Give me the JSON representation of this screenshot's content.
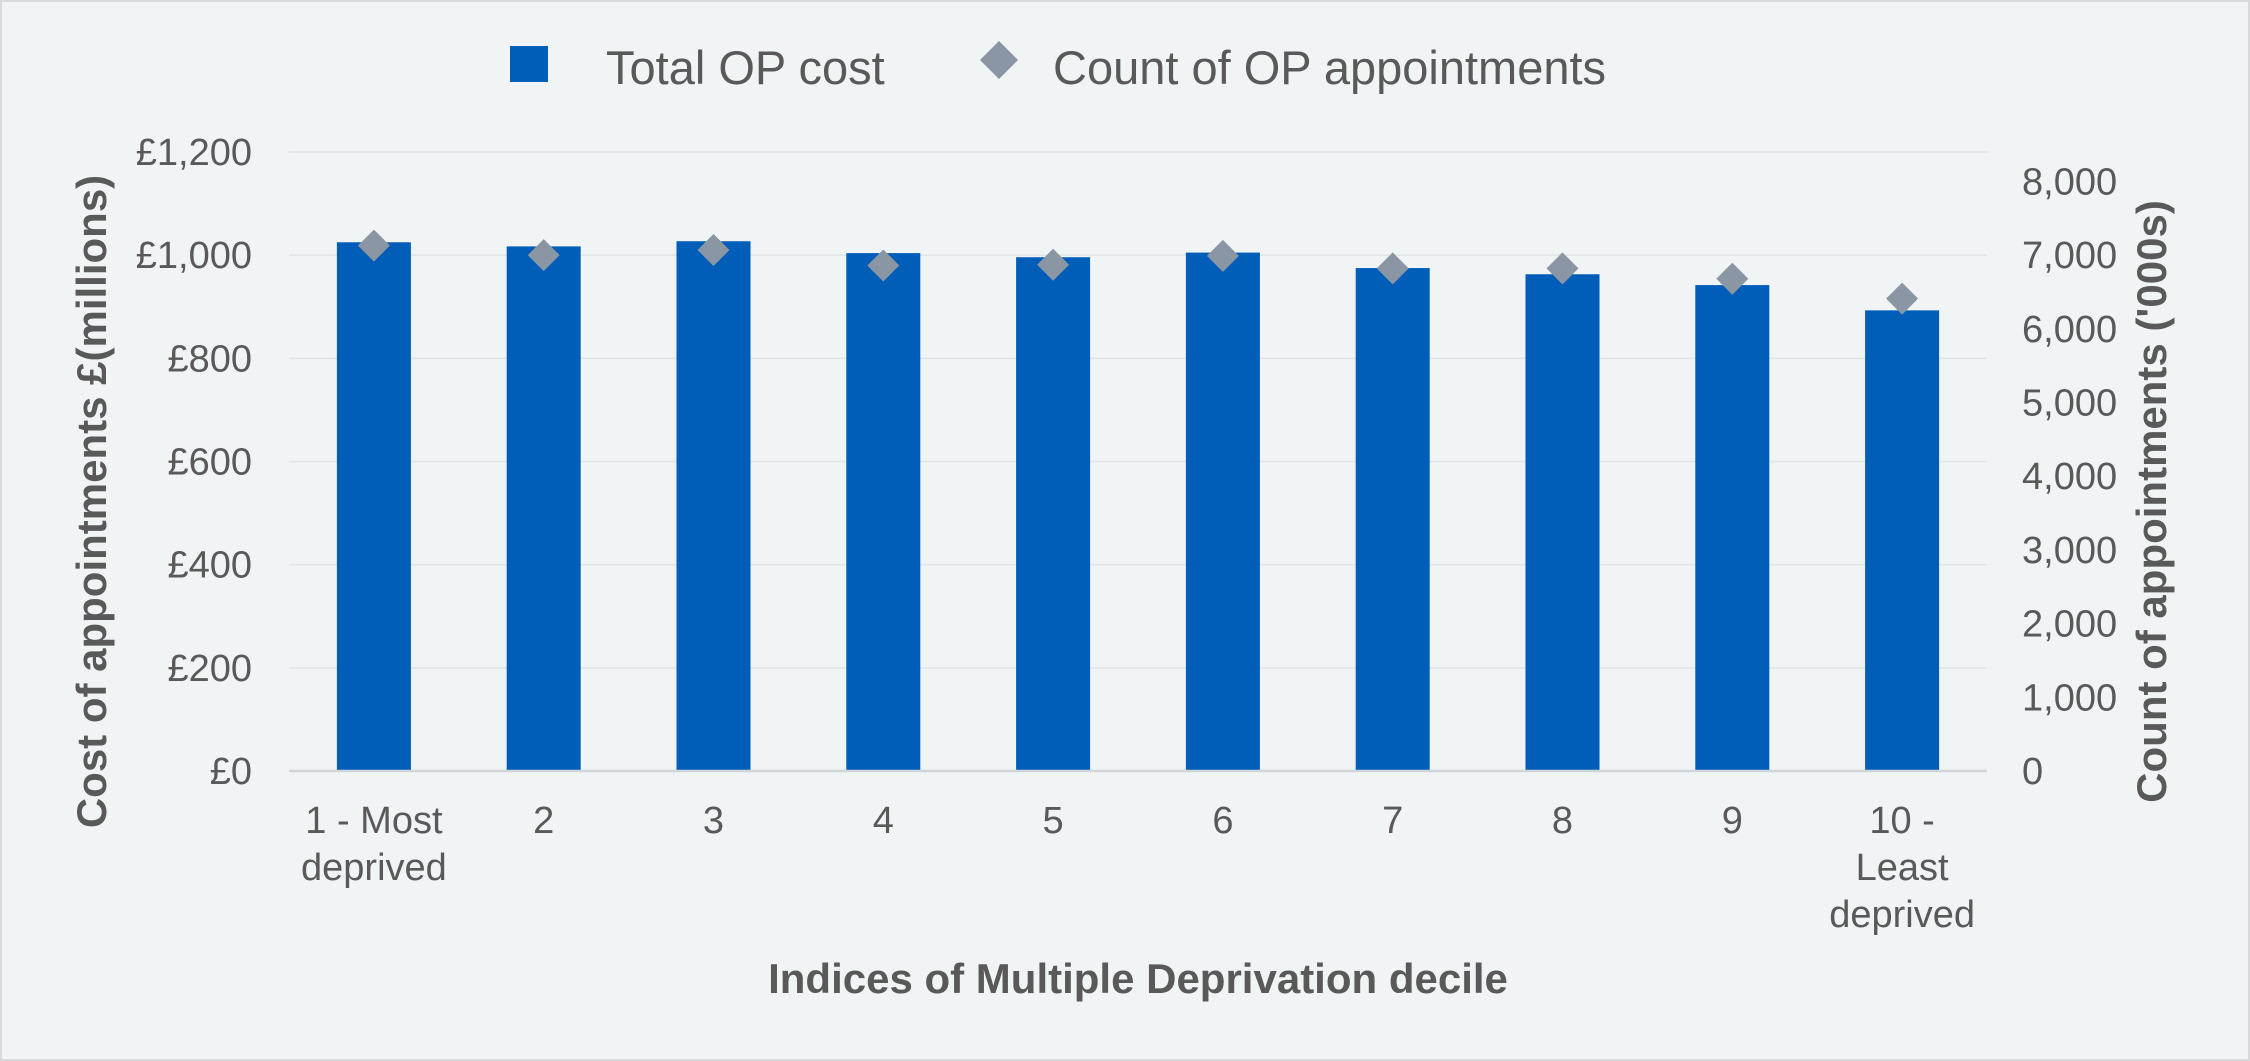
{
  "chart_data": {
    "type": "bar",
    "categories": [
      [
        "1 - Most",
        "deprived"
      ],
      [
        "2"
      ],
      [
        "3"
      ],
      [
        "4"
      ],
      [
        "5"
      ],
      [
        "6"
      ],
      [
        "7"
      ],
      [
        "8"
      ],
      [
        "9"
      ],
      [
        "10 -",
        "Least",
        "deprived"
      ]
    ],
    "series": [
      {
        "name": "Total OP cost",
        "type": "bar",
        "axis": "left",
        "color": "#005eb8",
        "values": [
          1025,
          1017,
          1027,
          1004,
          996,
          1005,
          975,
          963,
          942,
          893
        ]
      },
      {
        "name": "Count of OP appointments",
        "type": "scatter",
        "marker": "diamond",
        "axis": "right",
        "color": "#8a96a3",
        "values": [
          7130,
          7000,
          7070,
          6860,
          6870,
          6990,
          6820,
          6820,
          6680,
          6410
        ]
      }
    ],
    "xlabel": "Indices of Multiple Deprivation decile",
    "ylabel": "Cost of appointments £(millions)",
    "y2label": "Count of appointments ('000s)",
    "ylim": [
      0,
      1200
    ],
    "y2lim": [
      0,
      8400
    ],
    "yticks": [
      0,
      200,
      400,
      600,
      800,
      1000,
      1200
    ],
    "ytick_labels": [
      "£0",
      "£200",
      "£400",
      "£600",
      "£800",
      "£1,000",
      "£1,200"
    ],
    "y2ticks": [
      0,
      1000,
      2000,
      3000,
      4000,
      5000,
      6000,
      7000,
      8000
    ],
    "y2tick_labels": [
      "0",
      "1,000",
      "2,000",
      "3,000",
      "4,000",
      "5,000",
      "6,000",
      "7,000",
      "8,000"
    ],
    "grid": true,
    "legend_position": "top"
  }
}
